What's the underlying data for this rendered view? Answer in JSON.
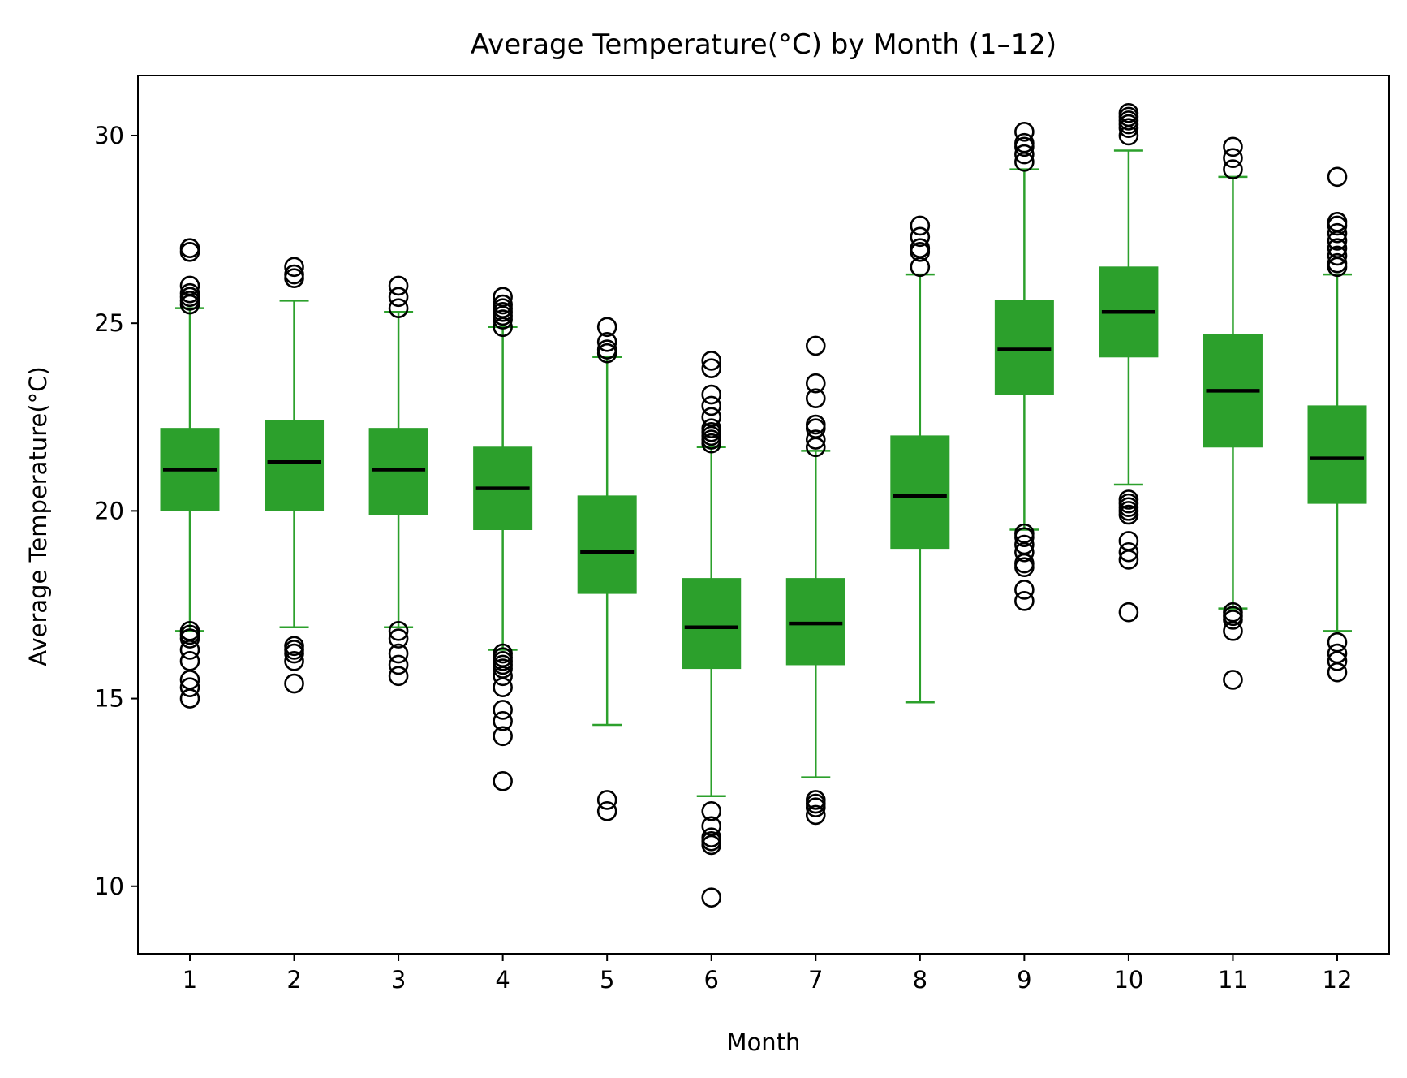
{
  "chart_data": {
    "type": "box",
    "title": "Average Temperature(°C) by Month (1–12)",
    "xlabel": "Month",
    "ylabel": "Average Temperature(°C)",
    "ylim": [
      8.2,
      31.6
    ],
    "yticks": [
      10,
      15,
      20,
      25,
      30
    ],
    "colors": {
      "box": "#2ca02c",
      "median": "#000000",
      "outlier": "#000000"
    },
    "categories": [
      "1",
      "2",
      "3",
      "4",
      "5",
      "6",
      "7",
      "8",
      "9",
      "10",
      "11",
      "12"
    ],
    "boxes": [
      {
        "month": "1",
        "whisker_low": 16.8,
        "q1": 20.0,
        "median": 21.1,
        "q3": 22.2,
        "whisker_high": 25.4,
        "outliers": [
          15.0,
          15.3,
          15.5,
          16.0,
          16.3,
          16.6,
          16.7,
          16.8,
          25.5,
          25.6,
          25.7,
          25.8,
          26.0,
          26.9,
          27.0
        ]
      },
      {
        "month": "2",
        "whisker_low": 16.9,
        "q1": 20.0,
        "median": 21.3,
        "q3": 22.4,
        "whisker_high": 25.6,
        "outliers": [
          15.4,
          16.0,
          16.2,
          16.3,
          16.4,
          26.2,
          26.3,
          26.5
        ]
      },
      {
        "month": "3",
        "whisker_low": 16.9,
        "q1": 19.9,
        "median": 21.1,
        "q3": 22.2,
        "whisker_high": 25.3,
        "outliers": [
          15.6,
          15.9,
          16.2,
          16.6,
          16.8,
          25.4,
          25.7,
          26.0
        ]
      },
      {
        "month": "4",
        "whisker_low": 16.3,
        "q1": 19.5,
        "median": 20.6,
        "q3": 21.7,
        "whisker_high": 24.9,
        "outliers": [
          12.8,
          14.0,
          14.4,
          14.7,
          15.3,
          15.6,
          15.8,
          15.9,
          16.0,
          16.1,
          16.2,
          24.9,
          25.1,
          25.2,
          25.3,
          25.4,
          25.5,
          25.7
        ]
      },
      {
        "month": "5",
        "whisker_low": 14.3,
        "q1": 17.8,
        "median": 18.9,
        "q3": 20.4,
        "whisker_high": 24.1,
        "outliers": [
          12.0,
          12.3,
          24.2,
          24.3,
          24.5,
          24.9
        ]
      },
      {
        "month": "6",
        "whisker_low": 12.4,
        "q1": 15.8,
        "median": 16.9,
        "q3": 18.2,
        "whisker_high": 21.7,
        "outliers": [
          9.7,
          11.1,
          11.2,
          11.3,
          11.6,
          12.0,
          21.8,
          21.9,
          22.0,
          22.1,
          22.2,
          22.5,
          22.8,
          23.1,
          23.8,
          24.0
        ]
      },
      {
        "month": "7",
        "whisker_low": 12.9,
        "q1": 15.9,
        "median": 17.0,
        "q3": 18.2,
        "whisker_high": 21.6,
        "outliers": [
          11.9,
          12.1,
          12.2,
          12.3,
          21.7,
          21.9,
          22.2,
          22.3,
          23.0,
          23.4,
          24.4
        ]
      },
      {
        "month": "8",
        "whisker_low": 14.9,
        "q1": 19.0,
        "median": 20.4,
        "q3": 22.0,
        "whisker_high": 26.3,
        "outliers": [
          26.5,
          26.9,
          27.0,
          27.3,
          27.6
        ]
      },
      {
        "month": "9",
        "whisker_low": 19.5,
        "q1": 23.1,
        "median": 24.3,
        "q3": 25.6,
        "whisker_high": 29.1,
        "outliers": [
          17.6,
          17.9,
          18.5,
          18.6,
          18.9,
          19.1,
          19.3,
          19.4,
          29.3,
          29.5,
          29.7,
          29.8,
          30.1
        ]
      },
      {
        "month": "10",
        "whisker_low": 20.7,
        "q1": 24.1,
        "median": 25.3,
        "q3": 26.5,
        "whisker_high": 29.6,
        "outliers": [
          17.3,
          18.7,
          18.9,
          19.2,
          19.9,
          20.0,
          20.1,
          20.2,
          20.3,
          30.0,
          30.2,
          30.3,
          30.4,
          30.5,
          30.6
        ]
      },
      {
        "month": "11",
        "whisker_low": 17.4,
        "q1": 21.7,
        "median": 23.2,
        "q3": 24.7,
        "whisker_high": 28.9,
        "outliers": [
          15.5,
          16.8,
          17.1,
          17.2,
          17.3,
          29.1,
          29.4,
          29.7
        ]
      },
      {
        "month": "12",
        "whisker_low": 16.8,
        "q1": 20.2,
        "median": 21.4,
        "q3": 22.8,
        "whisker_high": 26.3,
        "outliers": [
          15.7,
          16.0,
          16.2,
          16.5,
          26.5,
          26.6,
          26.8,
          27.0,
          27.2,
          27.4,
          27.6,
          27.7,
          28.9
        ]
      }
    ]
  }
}
